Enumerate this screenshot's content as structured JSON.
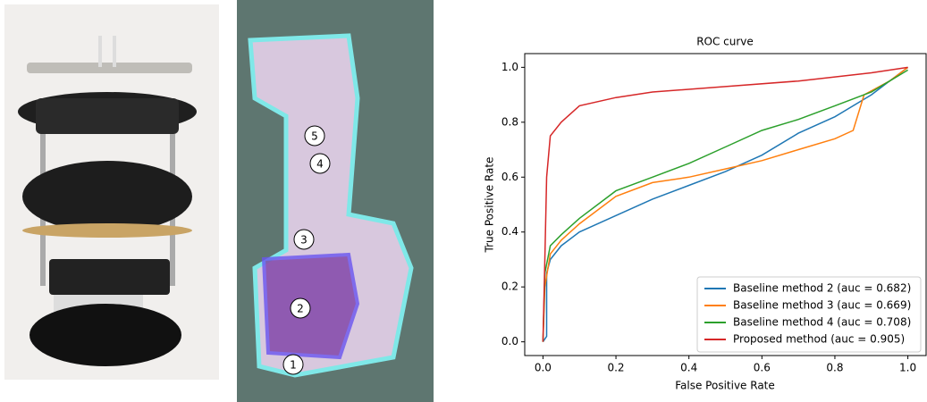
{
  "chart_data": {
    "type": "line",
    "title": "ROC curve",
    "xlabel": "False Positive Rate",
    "ylabel": "True Positive Rate",
    "xlim": [
      -0.05,
      1.05
    ],
    "ylim": [
      -0.05,
      1.05
    ],
    "xticks": [
      {
        "value": 0,
        "label": "0.0"
      },
      0.2,
      0.4,
      0.6,
      0.8,
      {
        "value": 1,
        "label": "1.0"
      }
    ],
    "yticks": [
      {
        "value": 0,
        "label": "0.0"
      },
      0.2,
      0.4,
      0.6,
      0.8,
      {
        "value": 1,
        "label": "1.0"
      }
    ],
    "legend": "lower right",
    "series": [
      {
        "name": "Baseline method 2 (auc = 0.682)",
        "color": "#1f77b4",
        "x": [
          0,
          0.01,
          0.01,
          0.02,
          0.05,
          0.1,
          0.2,
          0.3,
          0.4,
          0.5,
          0.6,
          0.7,
          0.8,
          0.9,
          0.95,
          1
        ],
        "values": [
          0,
          0.02,
          0.25,
          0.3,
          0.35,
          0.4,
          0.46,
          0.52,
          0.57,
          0.62,
          0.68,
          0.76,
          0.82,
          0.9,
          0.95,
          1
        ]
      },
      {
        "name": "Baseline method 3 (auc = 0.669)",
        "color": "#ff7f0e",
        "x": [
          0,
          0.005,
          0.02,
          0.05,
          0.1,
          0.2,
          0.3,
          0.4,
          0.5,
          0.6,
          0.7,
          0.8,
          0.85,
          0.88,
          0.95,
          1
        ],
        "values": [
          0,
          0.2,
          0.32,
          0.37,
          0.43,
          0.53,
          0.58,
          0.6,
          0.63,
          0.66,
          0.7,
          0.74,
          0.77,
          0.9,
          0.95,
          1
        ]
      },
      {
        "name": "Baseline method 4 (auc = 0.708)",
        "color": "#2ca02c",
        "x": [
          0,
          0.005,
          0.02,
          0.05,
          0.1,
          0.2,
          0.3,
          0.4,
          0.5,
          0.6,
          0.7,
          0.8,
          0.9,
          0.95,
          1
        ],
        "values": [
          0,
          0.25,
          0.35,
          0.39,
          0.45,
          0.55,
          0.6,
          0.65,
          0.71,
          0.77,
          0.81,
          0.86,
          0.91,
          0.95,
          0.99
        ]
      },
      {
        "name": "Proposed method (auc = 0.905)",
        "color": "#d62728",
        "x": [
          0,
          0.005,
          0.01,
          0.02,
          0.05,
          0.1,
          0.2,
          0.3,
          0.5,
          0.7,
          0.9,
          1
        ],
        "values": [
          0,
          0.3,
          0.6,
          0.75,
          0.8,
          0.86,
          0.89,
          0.91,
          0.93,
          0.95,
          0.98,
          1
        ]
      }
    ]
  },
  "map": {
    "labels": [
      "1",
      "2",
      "3",
      "4",
      "5"
    ]
  }
}
